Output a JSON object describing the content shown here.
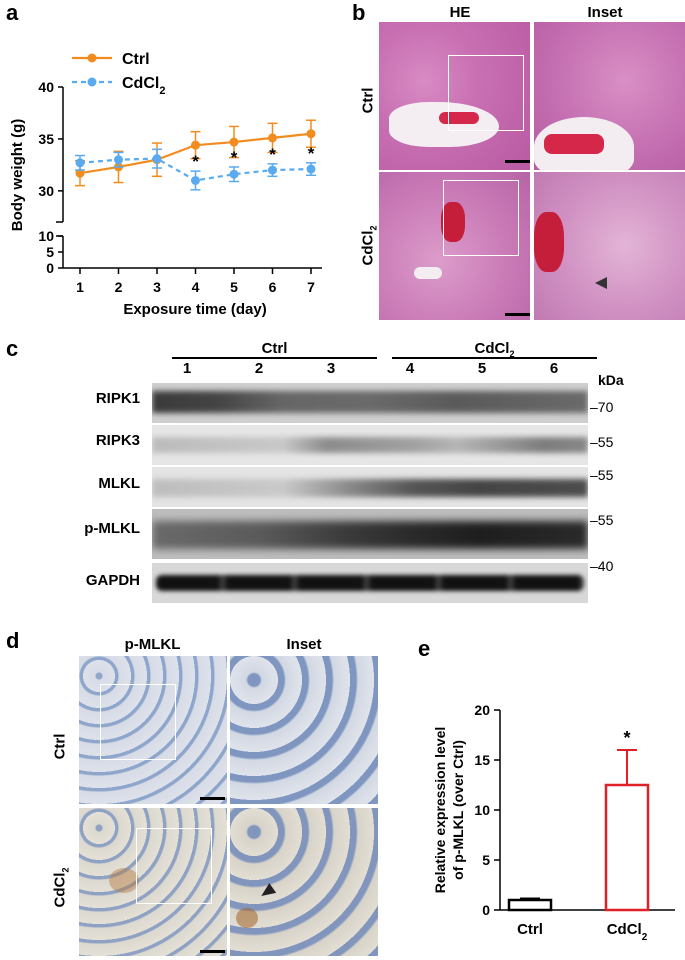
{
  "panels": {
    "a": {
      "letter": "a",
      "chart_data": {
        "type": "line",
        "xlabel": "Exposure time (day)",
        "ylabel": "Body weight (g)",
        "x": [
          1,
          2,
          3,
          4,
          5,
          6,
          7
        ],
        "y_ticks": [
          "0",
          "5",
          "10",
          "30",
          "35",
          "40"
        ],
        "ylim_break": [
          [
            0,
            10
          ],
          [
            27,
            40
          ]
        ],
        "series": [
          {
            "name": "Ctrl",
            "color": "#f28c1e",
            "style": "solid",
            "values": [
              31.7,
              32.3,
              33.0,
              34.4,
              34.7,
              35.1,
              35.5
            ],
            "errors": [
              1.2,
              1.5,
              1.6,
              1.3,
              1.5,
              1.4,
              1.3
            ]
          },
          {
            "name": "CdCl2",
            "name_main": "CdCl",
            "name_sub": "2",
            "color": "#5aaaf0",
            "style": "dashed",
            "values": [
              32.7,
              33.0,
              33.1,
              31.0,
              31.6,
              32.0,
              32.1
            ],
            "errors": [
              0.7,
              0.7,
              0.9,
              0.9,
              0.7,
              0.6,
              0.6
            ]
          }
        ],
        "significance": {
          "marker": "*",
          "days": [
            4,
            5,
            6,
            7
          ]
        }
      }
    },
    "b": {
      "letter": "b",
      "col_he": "HE",
      "col_inset": "Inset",
      "row_ctrl": "Ctrl",
      "row_cd_main": "CdCl",
      "row_cd_sub": "2"
    },
    "c": {
      "letter": "c",
      "group_ctrl": "Ctrl",
      "group_cd_main": "CdCl",
      "group_cd_sub": "2",
      "lanes": [
        "1",
        "2",
        "3",
        "4",
        "5",
        "6"
      ],
      "kda_header": "kDa",
      "rows": [
        {
          "label": "RIPK1",
          "marker": "70"
        },
        {
          "label": "RIPK3",
          "marker": "55"
        },
        {
          "label": "MLKL",
          "marker": "55"
        },
        {
          "label": "p-MLKL",
          "marker": "55"
        },
        {
          "label": "GAPDH",
          "marker": "40"
        }
      ]
    },
    "d": {
      "letter": "d",
      "col_stain": "p-MLKL",
      "col_inset": "Inset",
      "row_ctrl": "Ctrl",
      "row_cd_main": "CdCl",
      "row_cd_sub": "2"
    },
    "e": {
      "letter": "e",
      "chart_data": {
        "type": "bar",
        "categories": [
          "Ctrl",
          "CdCl2"
        ],
        "category_labels": [
          {
            "main": "Ctrl",
            "sub": ""
          },
          {
            "main": "CdCl",
            "sub": "2"
          }
        ],
        "values": [
          1.0,
          12.5
        ],
        "errors": [
          0.15,
          3.5
        ],
        "colors": [
          "#000000",
          "#e01f26"
        ],
        "ylabel_line1": "Relative expression level",
        "ylabel_line2": "of p-MLKL (over Ctrl)",
        "ylim": [
          0,
          20
        ],
        "y_ticks": [
          "0",
          "5",
          "10",
          "15",
          "20"
        ],
        "significance": {
          "marker": "*",
          "category": "CdCl2"
        }
      }
    }
  }
}
